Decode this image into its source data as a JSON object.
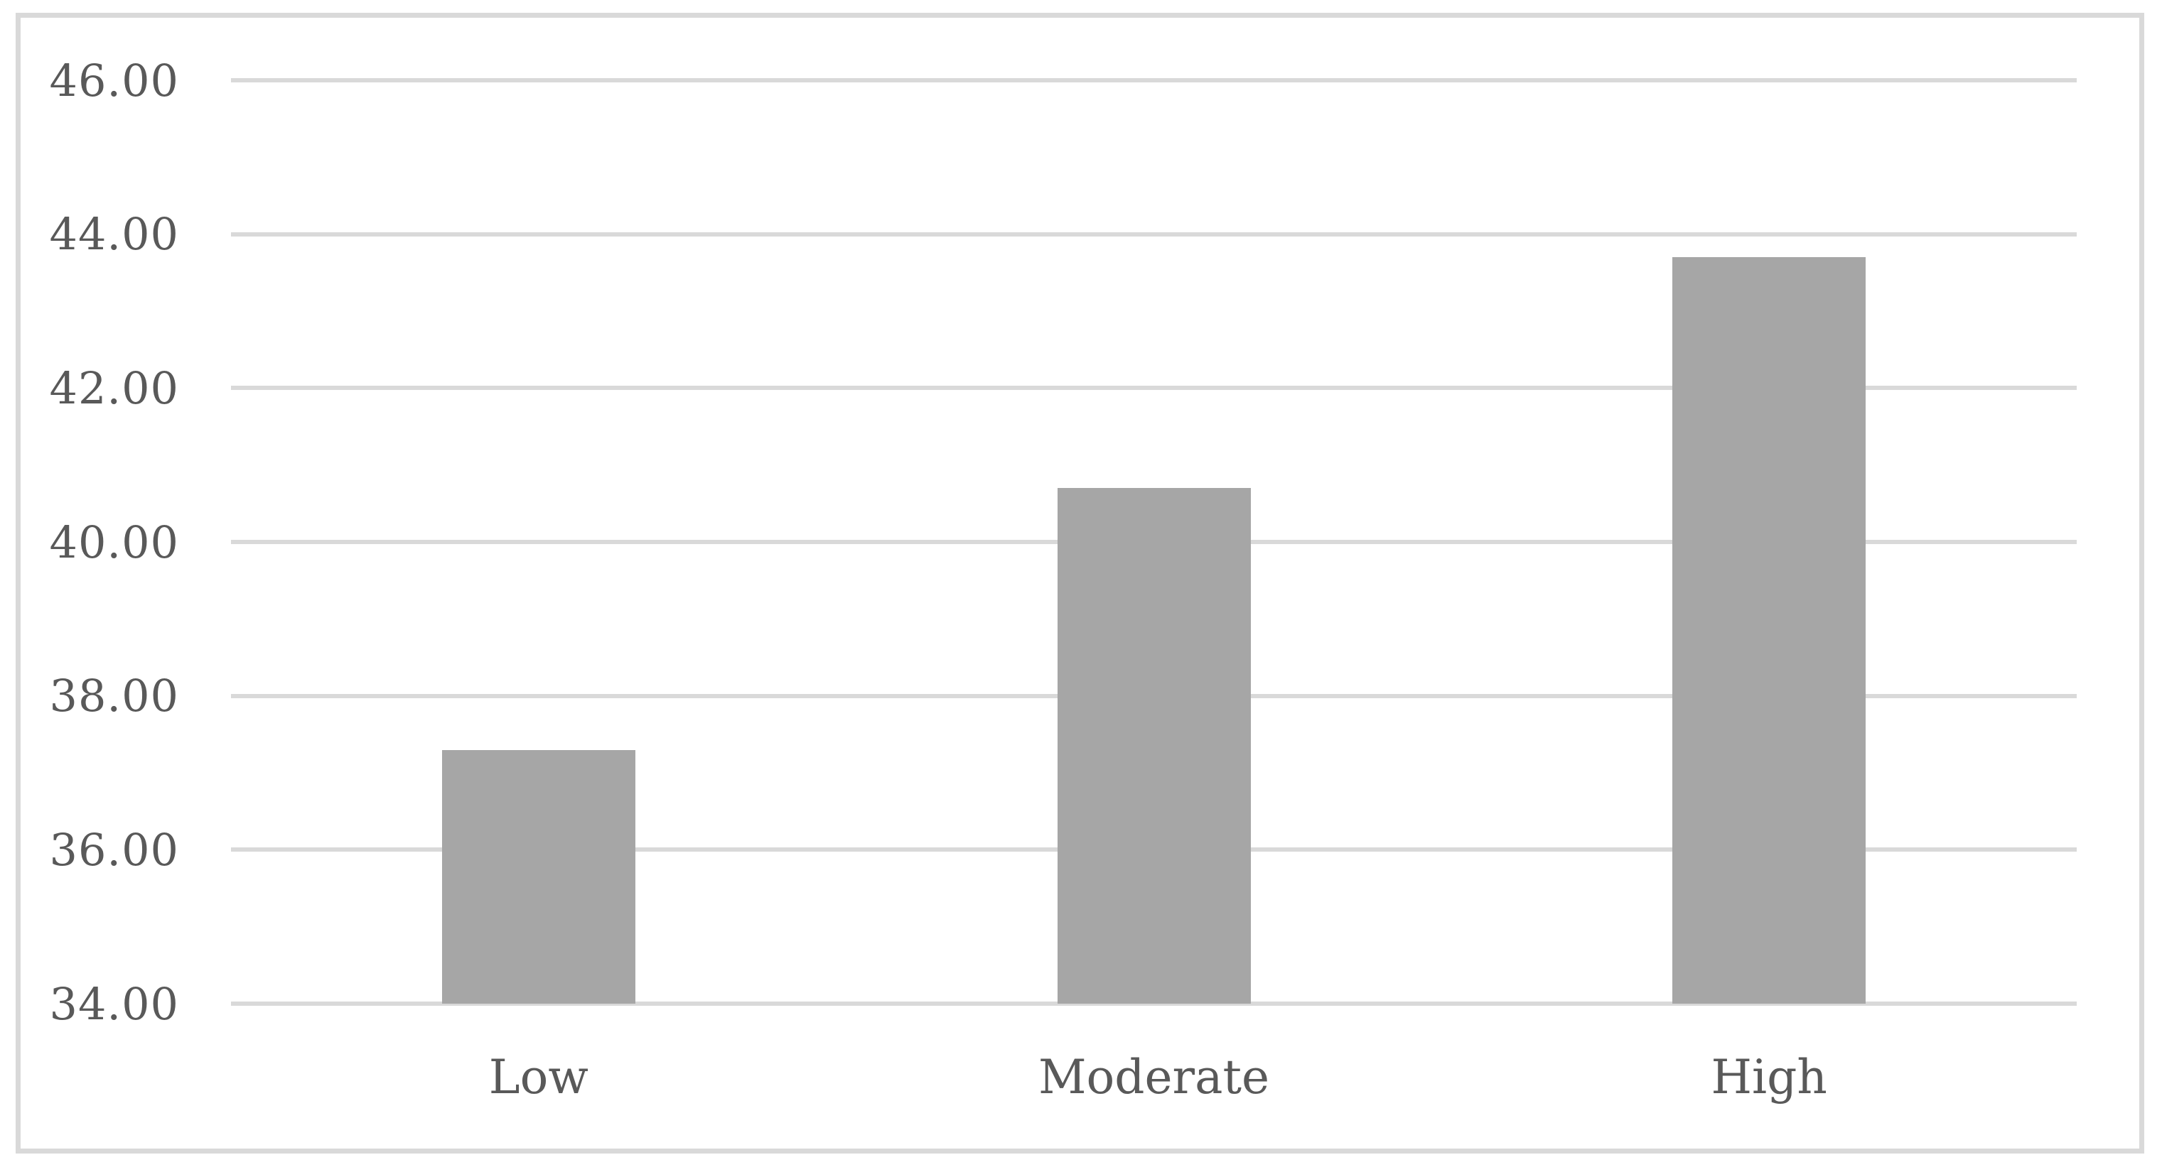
{
  "figure": {
    "background": "#ffffff",
    "border_color": "#d9d9d9"
  },
  "chart_data": {
    "type": "bar",
    "title": "",
    "xlabel": "",
    "ylabel": "",
    "categories": [
      "Low",
      "Moderate",
      "High"
    ],
    "values": [
      37.3,
      40.7,
      43.7
    ],
    "ylim": [
      34.0,
      46.0
    ],
    "ytick_step": 2.0,
    "ytick_labels": [
      "46.00",
      "44.00",
      "42.00",
      "40.00",
      "38.00",
      "36.00",
      "34.00"
    ],
    "grid": "horizontal-only",
    "legend": "none",
    "bar_color": "#a6a6a6",
    "gridline_color": "#d9d9d9",
    "text_color": "#595959"
  }
}
